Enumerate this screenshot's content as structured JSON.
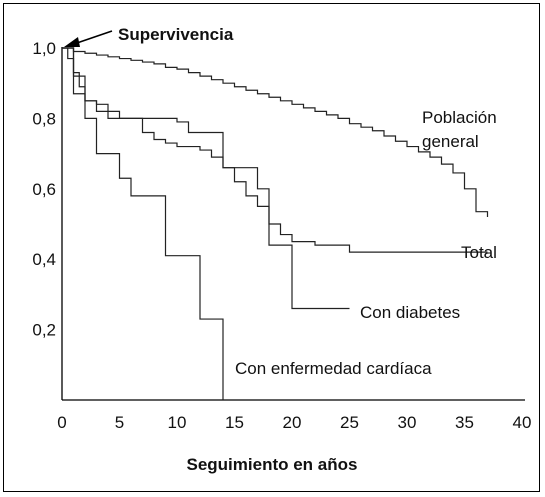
{
  "chart_data": {
    "type": "line",
    "annotation": "Supervivencia",
    "xlabel": "Seguimiento en años",
    "ylabel": "",
    "xlim": [
      0,
      40
    ],
    "ylim": [
      0,
      1.0
    ],
    "x_ticks": [
      "0",
      "5",
      "10",
      "15",
      "20",
      "25",
      "30",
      "35",
      "40"
    ],
    "y_ticks": [
      "1,0",
      "0,8",
      "0,6",
      "0,4",
      "0,2"
    ],
    "grid": false,
    "series": [
      {
        "name": "Población general",
        "line_style": "step",
        "x": [
          0,
          1,
          2,
          3,
          4,
          5,
          6,
          7,
          8,
          9,
          10,
          11,
          12,
          13,
          14,
          15,
          16,
          17,
          18,
          19,
          20,
          21,
          22,
          23,
          24,
          25,
          26,
          27,
          28,
          29,
          30,
          31,
          32,
          33,
          34,
          35,
          36,
          37
        ],
        "y": [
          1.0,
          0.99,
          0.985,
          0.98,
          0.975,
          0.97,
          0.965,
          0.96,
          0.955,
          0.945,
          0.94,
          0.93,
          0.92,
          0.91,
          0.9,
          0.89,
          0.88,
          0.87,
          0.86,
          0.85,
          0.84,
          0.83,
          0.82,
          0.81,
          0.8,
          0.785,
          0.775,
          0.765,
          0.75,
          0.735,
          0.72,
          0.705,
          0.69,
          0.67,
          0.645,
          0.6,
          0.535,
          0.52
        ]
      },
      {
        "name": "Total",
        "line_style": "step",
        "x": [
          0,
          0.5,
          1,
          1.5,
          2,
          3,
          4,
          5,
          7,
          8,
          9,
          10,
          12,
          13,
          14,
          15,
          16,
          17,
          18,
          19,
          20,
          22,
          25,
          30,
          37
        ],
        "y": [
          1.0,
          0.97,
          0.93,
          0.89,
          0.85,
          0.84,
          0.82,
          0.8,
          0.76,
          0.74,
          0.73,
          0.72,
          0.71,
          0.69,
          0.66,
          0.62,
          0.58,
          0.55,
          0.5,
          0.47,
          0.45,
          0.44,
          0.42,
          0.42,
          0.42
        ]
      },
      {
        "name": "Con diabetes",
        "line_style": "step",
        "x": [
          0,
          1,
          2,
          3,
          4,
          5,
          10,
          11,
          14,
          16,
          17,
          18,
          19,
          20,
          25
        ],
        "y": [
          1.0,
          0.92,
          0.85,
          0.82,
          0.8,
          0.8,
          0.79,
          0.76,
          0.66,
          0.66,
          0.6,
          0.44,
          0.44,
          0.26,
          0.26
        ]
      },
      {
        "name": "Con enfermedad cardíaca",
        "line_style": "step",
        "x": [
          0,
          1,
          2,
          3,
          4,
          5,
          6,
          7,
          8,
          9,
          10,
          11,
          12,
          13,
          14
        ],
        "y": [
          1.0,
          0.87,
          0.8,
          0.7,
          0.7,
          0.63,
          0.58,
          0.58,
          0.58,
          0.41,
          0.41,
          0.41,
          0.23,
          0.23,
          0.0
        ]
      }
    ]
  }
}
